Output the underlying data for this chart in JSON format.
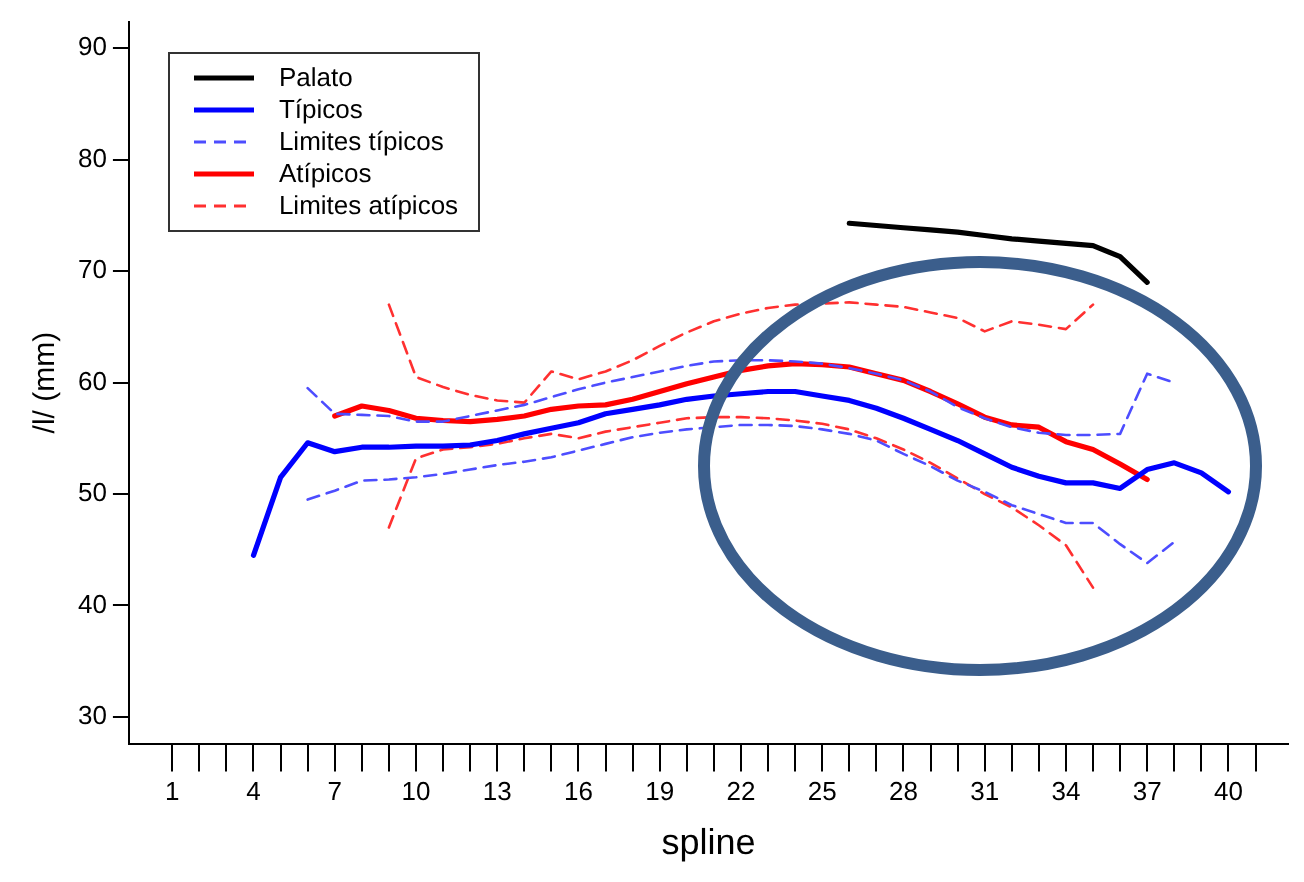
{
  "chart_data": {
    "type": "line",
    "xlabel": "spline",
    "ylabel": "/l/ (mm)",
    "xlim": [
      -0.6,
      42.2
    ],
    "ylim": [
      27.6,
      92.4
    ],
    "xticks": [
      1,
      {
        "value": 2,
        "label": null
      },
      {
        "value": 3,
        "label": null
      },
      4,
      {
        "value": 5,
        "label": null
      },
      {
        "value": 6,
        "label": null
      },
      7,
      {
        "value": 8,
        "label": null
      },
      {
        "value": 9,
        "label": null
      },
      10,
      {
        "value": 11,
        "label": null
      },
      {
        "value": 12,
        "label": null
      },
      13,
      {
        "value": 14,
        "label": null
      },
      {
        "value": 15,
        "label": null
      },
      16,
      {
        "value": 17,
        "label": null
      },
      {
        "value": 18,
        "label": null
      },
      19,
      {
        "value": 20,
        "label": null
      },
      {
        "value": 21,
        "label": null
      },
      22,
      {
        "value": 23,
        "label": null
      },
      {
        "value": 24,
        "label": null
      },
      25,
      {
        "value": 26,
        "label": null
      },
      {
        "value": 27,
        "label": null
      },
      28,
      {
        "value": 29,
        "label": null
      },
      {
        "value": 30,
        "label": null
      },
      31,
      {
        "value": 32,
        "label": null
      },
      {
        "value": 33,
        "label": null
      },
      34,
      {
        "value": 35,
        "label": null
      },
      {
        "value": 36,
        "label": null
      },
      37,
      {
        "value": 38,
        "label": null
      },
      {
        "value": 39,
        "label": null
      },
      40,
      {
        "value": 41,
        "label": null
      }
    ],
    "yticks": [
      30,
      40,
      50,
      60,
      70,
      80,
      90
    ],
    "grid": false,
    "legend": "top left",
    "marker": "none",
    "series": [
      {
        "name": "Palato",
        "color": "#000000",
        "line_style": "solid",
        "x": [
          26,
          27,
          28,
          29,
          30,
          31,
          32,
          33,
          34,
          35,
          36,
          37
        ],
        "values": [
          74.3,
          74.1,
          73.9,
          73.7,
          73.5,
          73.2,
          72.9,
          72.7,
          72.5,
          72.3,
          71.3,
          69.0
        ]
      },
      {
        "name": "Típicos",
        "color": "#0000ff",
        "line_style": "solid",
        "x": [
          4,
          5,
          6,
          7,
          8,
          9,
          10,
          11,
          12,
          13,
          14,
          15,
          16,
          17,
          18,
          19,
          20,
          21,
          22,
          23,
          24,
          25,
          26,
          27,
          28,
          29,
          30,
          31,
          32,
          33,
          34,
          35,
          36,
          37,
          38,
          39,
          40
        ],
        "values": [
          44.5,
          51.5,
          54.6,
          53.8,
          54.2,
          54.2,
          54.3,
          54.3,
          54.4,
          54.8,
          55.4,
          55.9,
          56.4,
          57.2,
          57.6,
          58.0,
          58.5,
          58.8,
          59.0,
          59.2,
          59.2,
          58.8,
          58.4,
          57.7,
          56.8,
          55.8,
          54.8,
          53.6,
          52.4,
          51.6,
          51.0,
          51.0,
          50.5,
          52.2,
          52.8,
          51.9,
          50.2
        ]
      },
      {
        "name": "Limites típicos",
        "color": "#4d4dff",
        "line_style": "dashed",
        "x": [
          6,
          7,
          8,
          9,
          10,
          11,
          12,
          13,
          14,
          15,
          16,
          17,
          18,
          19,
          20,
          21,
          22,
          23,
          24,
          25,
          26,
          27,
          28,
          29,
          30,
          31,
          32,
          33,
          34,
          35,
          36,
          37,
          38
        ],
        "values": [
          59.5,
          57.2,
          57.1,
          57.0,
          56.5,
          56.5,
          57.0,
          57.5,
          58.0,
          58.7,
          59.4,
          60.0,
          60.5,
          61.0,
          61.5,
          61.9,
          62.0,
          62.0,
          61.9,
          61.7,
          61.3,
          60.8,
          60.2,
          59.2,
          57.8,
          56.8,
          56.0,
          55.5,
          55.3,
          55.3,
          55.4,
          60.8,
          60.0
        ]
      },
      {
        "color": "#4d4dff",
        "line_style": "dashed",
        "x": [
          6,
          7,
          8,
          9,
          10,
          11,
          12,
          13,
          14,
          15,
          16,
          17,
          18,
          19,
          20,
          21,
          22,
          23,
          24,
          25,
          26,
          27,
          28,
          29,
          30,
          31,
          32,
          33,
          34,
          35,
          36,
          37,
          38
        ],
        "values": [
          49.5,
          50.3,
          51.2,
          51.3,
          51.5,
          51.8,
          52.2,
          52.6,
          52.9,
          53.3,
          53.9,
          54.5,
          55.1,
          55.5,
          55.8,
          56.0,
          56.2,
          56.2,
          56.1,
          55.8,
          55.4,
          54.8,
          53.6,
          52.5,
          51.2,
          50.2,
          49.0,
          48.2,
          47.4,
          47.4,
          45.5,
          43.8,
          45.7
        ]
      },
      {
        "name": "Atípicos",
        "color": "#ff0000",
        "line_style": "solid",
        "x": [
          7,
          8,
          9,
          10,
          11,
          12,
          13,
          14,
          15,
          16,
          17,
          18,
          19,
          20,
          21,
          22,
          23,
          24,
          25,
          26,
          27,
          28,
          29,
          30,
          31,
          32,
          33,
          34,
          35,
          36,
          37
        ],
        "values": [
          57.0,
          57.9,
          57.5,
          56.8,
          56.6,
          56.5,
          56.7,
          57.0,
          57.6,
          57.9,
          58.0,
          58.5,
          59.2,
          59.9,
          60.5,
          61.1,
          61.5,
          61.7,
          61.6,
          61.4,
          60.8,
          60.2,
          59.2,
          58.1,
          56.9,
          56.2,
          56.0,
          54.7,
          54.0,
          52.7,
          51.3
        ]
      },
      {
        "name": "Limites atípicos",
        "color": "#ff3030",
        "line_style": "dashed",
        "x": [
          9,
          10,
          11,
          12,
          13,
          14,
          15,
          16,
          17,
          18,
          19,
          20,
          21,
          22,
          23,
          24,
          25,
          26,
          27,
          28,
          29,
          30,
          31,
          32,
          33,
          34,
          35
        ],
        "values": [
          67.0,
          60.5,
          59.6,
          58.9,
          58.4,
          58.2,
          61.0,
          60.3,
          61.0,
          62.0,
          63.3,
          64.5,
          65.5,
          66.2,
          66.7,
          67.0,
          67.1,
          67.2,
          67.0,
          66.8,
          66.3,
          65.8,
          64.6,
          65.5,
          65.2,
          64.8,
          67.0
        ]
      },
      {
        "color": "#ff3030",
        "line_style": "dashed",
        "x": [
          9,
          10,
          11,
          12,
          13,
          14,
          15,
          16,
          17,
          18,
          19,
          20,
          21,
          22,
          23,
          24,
          25,
          26,
          27,
          28,
          29,
          30,
          31,
          32,
          33,
          34,
          35
        ],
        "values": [
          47.0,
          53.2,
          54.0,
          54.2,
          54.5,
          55.0,
          55.4,
          55.0,
          55.6,
          56.0,
          56.4,
          56.8,
          56.9,
          56.9,
          56.8,
          56.6,
          56.3,
          55.8,
          55.0,
          54.0,
          52.8,
          51.4,
          50.0,
          48.8,
          47.2,
          45.4,
          41.6
        ]
      }
    ]
  }
}
